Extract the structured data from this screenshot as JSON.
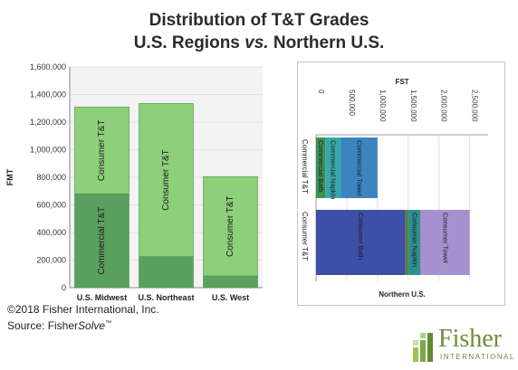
{
  "title": {
    "line1": "Distribution of T&T Grades",
    "line2_a": "U.S. Regions ",
    "line2_b": "vs.",
    "line2_c": " Northern U.S."
  },
  "colors": {
    "consumer_tt": "#8ed07a",
    "commercial_tt": "#5aa05e",
    "commercial_bath": "#3c8f55",
    "commercial_napkin": "#39a6a6",
    "commercial_towel": "#3c84c0",
    "consumer_bath": "#3d4fa6",
    "consumer_mid": "#5d7a3c",
    "consumer_napkin": "#2f8f8f",
    "consumer_towel": "#a690cf"
  },
  "chart_data": [
    {
      "type": "bar",
      "stacked": true,
      "ylabel": "FMT",
      "ylim": [
        0,
        1600000
      ],
      "yticks": [
        "0",
        "200,000",
        "400,000",
        "600,000",
        "800,000",
        "1,000,000",
        "1,200,000",
        "1,400,000",
        "1,600,000"
      ],
      "categories": [
        "U.S. Midwest",
        "U.S. Northeast",
        "U.S. West"
      ],
      "series": [
        {
          "name": "Commercial T&T",
          "values": [
            680000,
            225000,
            85000
          ]
        },
        {
          "name": "Consumer T&T",
          "values": [
            630000,
            1110000,
            720000
          ]
        }
      ]
    },
    {
      "type": "bar",
      "orientation": "horizontal",
      "stacked": true,
      "xlabel": "FST",
      "xlim": [
        0,
        2800000
      ],
      "xticks": [
        "0",
        "500,000",
        "1,000,000",
        "1,500,000",
        "2,000,000",
        "2,500,000"
      ],
      "group_label": "Northern U.S.",
      "categories": [
        "Commercial T&T",
        "Consumer T&T"
      ],
      "rows": [
        {
          "name": "Commercial T&T",
          "segments": [
            {
              "name": "Commercial Bath",
              "value": 150000
            },
            {
              "name": "Commercial Napkin",
              "value": 250000
            },
            {
              "name": "Commercial Towel",
              "value": 600000
            }
          ]
        },
        {
          "name": "Consumer T&T",
          "segments": [
            {
              "name": "Consumer Bath",
              "value": 1450000
            },
            {
              "name": "",
              "value": 50000
            },
            {
              "name": "Consumer Napkin",
              "value": 200000
            },
            {
              "name": "Consumer Towel",
              "value": 800000
            }
          ]
        }
      ]
    }
  ],
  "footer": {
    "copyright": "©2018 Fisher International, Inc.",
    "source_prefix": "Source: Fisher",
    "source_italic": "Solve",
    "source_tm": "™"
  },
  "logo": {
    "word": "Fisher",
    "sub": "INTERNATIONAL"
  }
}
